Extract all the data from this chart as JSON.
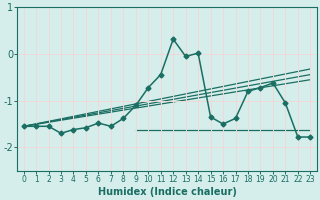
{
  "xlabel": "Humidex (Indice chaleur)",
  "background_color": "#d5eeec",
  "grid_color": "#f0d8d8",
  "line_color": "#1a6e62",
  "xlim": [
    -0.5,
    23.5
  ],
  "ylim": [
    -2.5,
    0.55
  ],
  "yticks": [
    1,
    0,
    -1,
    -2
  ],
  "xticks": [
    0,
    1,
    2,
    3,
    4,
    5,
    6,
    7,
    8,
    9,
    10,
    11,
    12,
    13,
    14,
    15,
    16,
    17,
    18,
    19,
    20,
    21,
    22,
    23
  ],
  "main_y": [
    -1.55,
    -1.55,
    -1.55,
    -1.7,
    -1.62,
    -1.58,
    -1.48,
    -1.55,
    -1.38,
    -1.1,
    -0.72,
    -0.44,
    0.32,
    -0.05,
    0.02,
    -1.35,
    -1.5,
    -1.38,
    -0.8,
    -0.72,
    -0.62,
    -1.05,
    -1.78,
    -1.78
  ],
  "flat_line": {
    "x0": 9,
    "x1": 23,
    "y": -1.62
  },
  "diag_lines": [
    {
      "x0": 0,
      "x1": 23,
      "y0": -1.55,
      "y1": -0.55
    },
    {
      "x0": 0,
      "x1": 23,
      "y0": -1.55,
      "y1": -0.44
    },
    {
      "x0": 0,
      "x1": 23,
      "y0": -1.55,
      "y1": -0.32
    }
  ]
}
